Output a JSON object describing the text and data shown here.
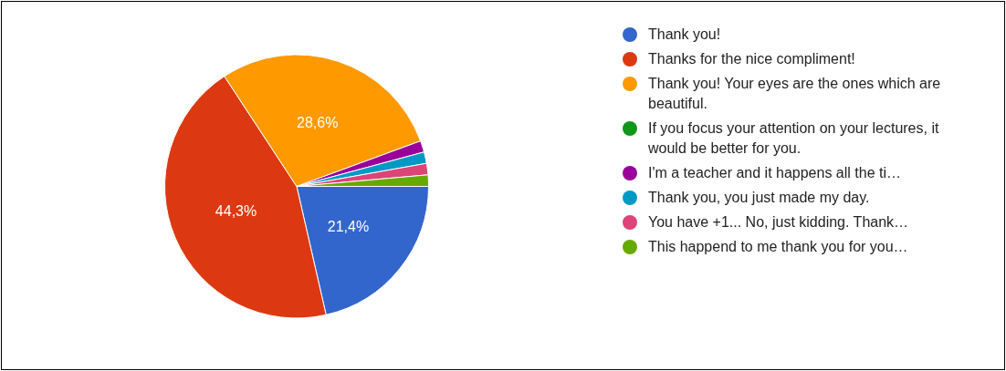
{
  "chart_data": {
    "type": "pie",
    "categories": [
      "Thank you!",
      "Thanks for the nice compliment!",
      "Thank you! Your eyes are the ones which are beautiful.",
      "If you focus your attention on your lectures, it would be better for you.",
      "I'm a teacher and it happens all the ti…",
      "Thank you, you just made my day.",
      "You have +1... No, just kidding. Thank…",
      "This happend to me thank you for you…"
    ],
    "values": [
      21.4,
      44.3,
      28.6,
      0,
      1.4,
      1.4,
      1.4,
      1.4
    ],
    "colors": [
      "#3366cc",
      "#dc3912",
      "#ff9900",
      "#109618",
      "#990099",
      "#0099c6",
      "#dd4477",
      "#66aa00"
    ],
    "value_labels": [
      "21,4%",
      "44,3%",
      "28,6%",
      null,
      null,
      null,
      null,
      null
    ],
    "legend": "right"
  }
}
